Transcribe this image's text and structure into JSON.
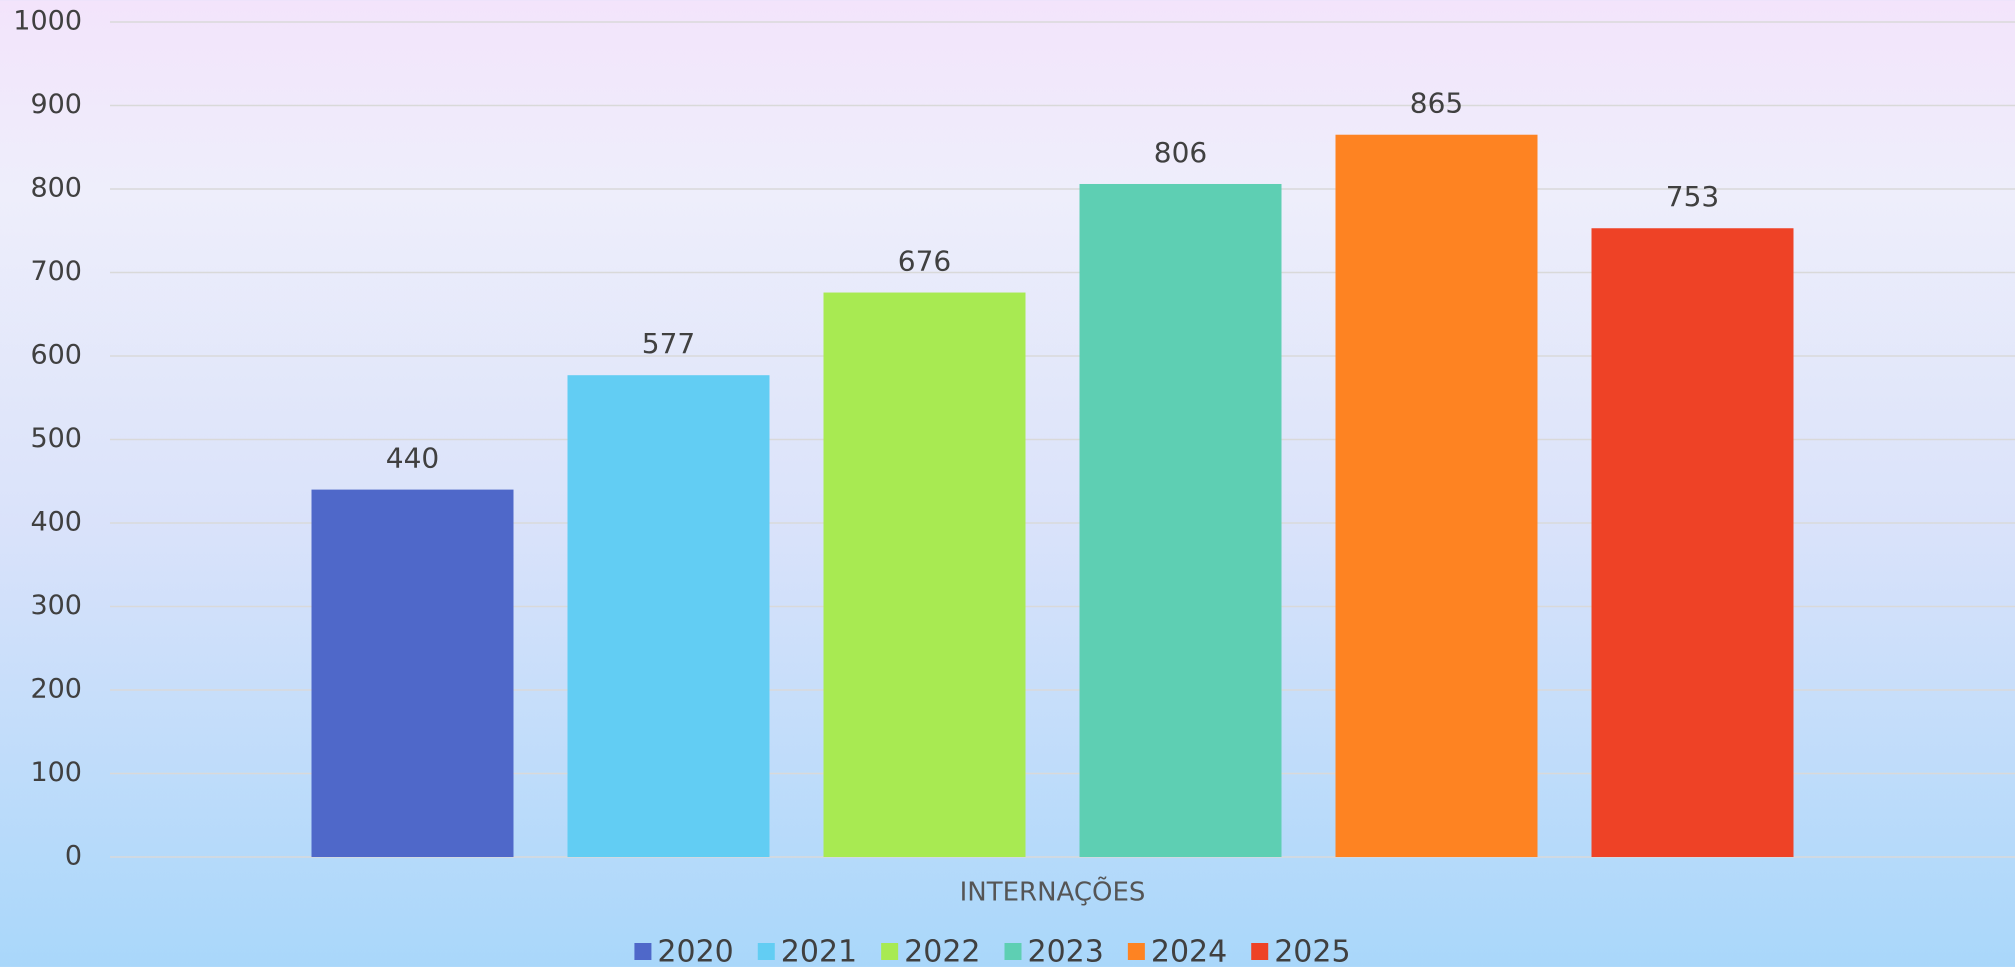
{
  "chart_data": {
    "type": "bar",
    "categories": [
      "INTERNAÇÕES"
    ],
    "series": [
      {
        "name": "2020",
        "color": "#4f68c9",
        "values": [
          440
        ]
      },
      {
        "name": "2021",
        "color": "#62cdf3",
        "values": [
          577
        ]
      },
      {
        "name": "2022",
        "color": "#a8ea52",
        "values": [
          676
        ]
      },
      {
        "name": "2023",
        "color": "#5ecfb3",
        "values": [
          806
        ]
      },
      {
        "name": "2024",
        "color": "#fe8322",
        "values": [
          865
        ]
      },
      {
        "name": "2025",
        "color": "#ee4226",
        "values": [
          753
        ]
      }
    ],
    "ylim": [
      0,
      1000
    ],
    "yticks": [
      0,
      100,
      200,
      300,
      400,
      500,
      600,
      700,
      800,
      900,
      1000
    ],
    "grid": true,
    "legend": "bottom"
  }
}
